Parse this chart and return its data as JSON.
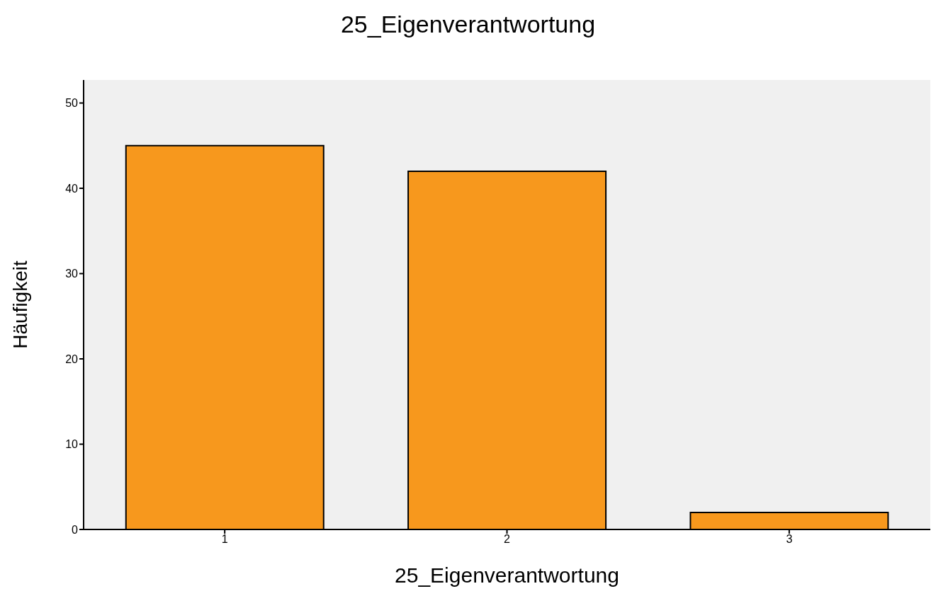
{
  "chart_data": {
    "type": "bar",
    "title": "25_Eigenverantwortung",
    "xlabel": "25_Eigenverantwortung",
    "ylabel": "Häufigkeit",
    "categories": [
      "1",
      "2",
      "3"
    ],
    "values": [
      45,
      42,
      2
    ],
    "color": "#f7981d",
    "ylim": [
      0,
      52.7
    ],
    "yticks": [
      0,
      10,
      20,
      30,
      40,
      50
    ],
    "grid": false
  }
}
